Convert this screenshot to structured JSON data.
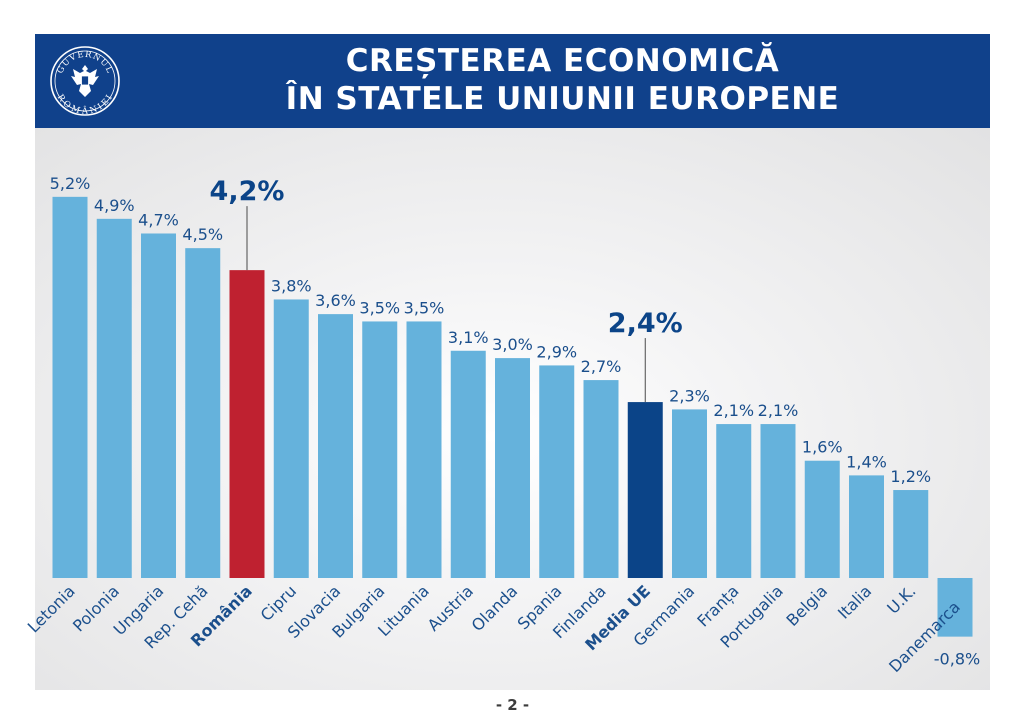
{
  "header": {
    "title_line1": "CREȘTEREA ECONOMICĂ",
    "title_line2": "ÎN STATELE UNIUNII EUROPENE",
    "logo_text_top": "GUVERNUL",
    "logo_text_bottom": "ROMÂNIEI"
  },
  "page_number": "- 2 -",
  "colors": {
    "banner": "#10418b",
    "bar_default": "#65b2dc",
    "bar_romania": "#bf2130",
    "bar_eu_average": "#0b4488",
    "value_label": "#1b4f8c",
    "category_label": "#1b4f8c"
  },
  "chart_data": {
    "type": "bar",
    "categories": [
      "Letonia",
      "Polonia",
      "Ungaria",
      "Rep. Cehă",
      "România",
      "Cipru",
      "Slovacia",
      "Bulgaria",
      "Lituania",
      "Austria",
      "Olanda",
      "Spania",
      "Finlanda",
      "Media UE",
      "Germania",
      "Franța",
      "Portugalia",
      "Belgia",
      "Italia",
      "U.K.",
      "Danemarca"
    ],
    "values": [
      5.2,
      4.9,
      4.7,
      4.5,
      4.2,
      3.8,
      3.6,
      3.5,
      3.5,
      3.1,
      3.0,
      2.9,
      2.7,
      2.4,
      2.3,
      2.1,
      2.1,
      1.6,
      1.4,
      1.2,
      -0.8
    ],
    "value_labels": [
      "5,2%",
      "4,9%",
      "4,7%",
      "4,5%",
      "4,2%",
      "3,8%",
      "3,6%",
      "3,5%",
      "3,5%",
      "3,1%",
      "3,0%",
      "2,9%",
      "2,7%",
      "2,4%",
      "2,3%",
      "2,1%",
      "2,1%",
      "1,6%",
      "1,4%",
      "1,2%",
      "-0,8%"
    ],
    "highlighted": {
      "România": "bar_romania",
      "Media UE": "bar_eu_average"
    },
    "bold_categories": [
      "România",
      "Media UE"
    ],
    "unit": "%",
    "title": "",
    "xlabel": "",
    "ylabel": "",
    "ylim": [
      -0.8,
      5.2
    ],
    "grid": false,
    "legend": "none"
  }
}
